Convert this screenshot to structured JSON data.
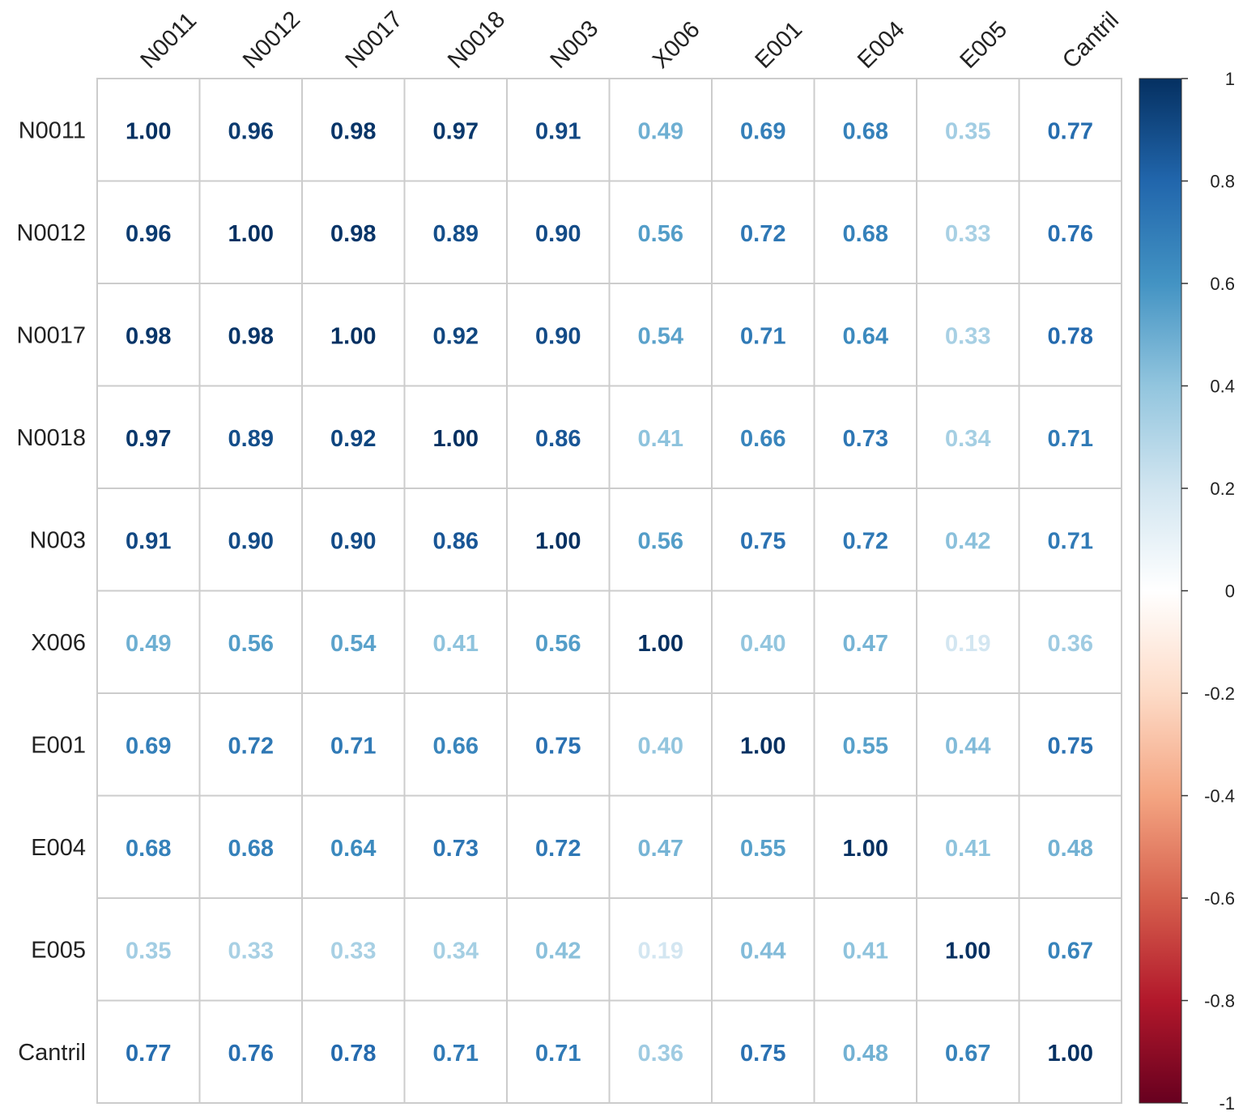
{
  "chart_data": {
    "type": "heatmap",
    "variables": [
      "N0011",
      "N0012",
      "N0017",
      "N0018",
      "N003",
      "X006",
      "E001",
      "E004",
      "E005",
      "Cantril"
    ],
    "matrix": [
      [
        1.0,
        0.96,
        0.98,
        0.97,
        0.91,
        0.49,
        0.69,
        0.68,
        0.35,
        0.77
      ],
      [
        0.96,
        1.0,
        0.98,
        0.89,
        0.9,
        0.56,
        0.72,
        0.68,
        0.33,
        0.76
      ],
      [
        0.98,
        0.98,
        1.0,
        0.92,
        0.9,
        0.54,
        0.71,
        0.64,
        0.33,
        0.78
      ],
      [
        0.97,
        0.89,
        0.92,
        1.0,
        0.86,
        0.41,
        0.66,
        0.73,
        0.34,
        0.71
      ],
      [
        0.91,
        0.9,
        0.9,
        0.86,
        1.0,
        0.56,
        0.75,
        0.72,
        0.42,
        0.71
      ],
      [
        0.49,
        0.56,
        0.54,
        0.41,
        0.56,
        1.0,
        0.4,
        0.47,
        0.19,
        0.36
      ],
      [
        0.69,
        0.72,
        0.71,
        0.66,
        0.75,
        0.4,
        1.0,
        0.55,
        0.44,
        0.75
      ],
      [
        0.68,
        0.68,
        0.64,
        0.73,
        0.72,
        0.47,
        0.55,
        1.0,
        0.41,
        0.48
      ],
      [
        0.35,
        0.33,
        0.33,
        0.34,
        0.42,
        0.19,
        0.44,
        0.41,
        1.0,
        0.67
      ],
      [
        0.77,
        0.76,
        0.78,
        0.71,
        0.71,
        0.36,
        0.75,
        0.48,
        0.67,
        1.0
      ]
    ],
    "value_labels_decimals": 2,
    "color_scale": {
      "range": [
        -1,
        1
      ],
      "ticks": [
        "1",
        "0.8",
        "0.6",
        "0.4",
        "0.2",
        "0",
        "-0.2",
        "-0.4",
        "-0.6",
        "-0.8",
        "-1"
      ],
      "palette": "RdBu",
      "stops": [
        "#67001F",
        "#B2182B",
        "#D6604D",
        "#F4A582",
        "#FDDBC7",
        "#FFFFFF",
        "#D1E5F0",
        "#92C5DE",
        "#4393C3",
        "#2166AC",
        "#053061"
      ]
    },
    "grid": true,
    "legend_position": "right",
    "cell_border_color": "#CCCCCC"
  }
}
